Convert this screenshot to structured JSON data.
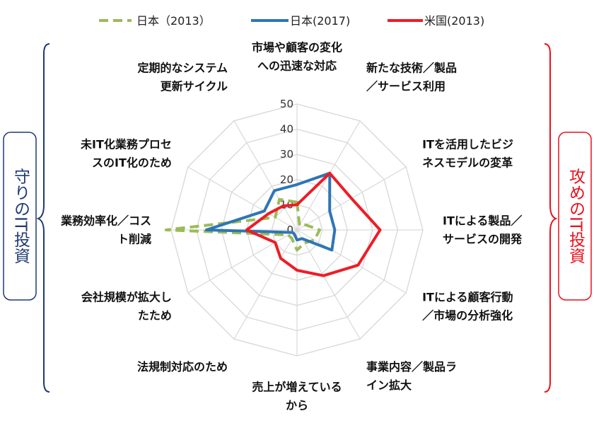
{
  "chart_data": {
    "type": "radar",
    "categories": [
      "市場や顧客の変化への迅速な対応",
      "新たな技術／製品／サービス利用",
      "ITを活用したビジネスモデルの変革",
      "ITによる製品／サービスの開発",
      "ITによる顧客行動／市場の分析強化",
      "事業内容／製品ライン拡大",
      "売上が増えているから",
      "法規制対応のため",
      "会社規模が拡大したため",
      "業務効率化／コスト削減",
      "未IT化業務プロセスのIT化のため",
      "定期的なシステム更新サイクル"
    ],
    "category_lines": [
      [
        "市場や顧客の変化",
        "への迅速な対応"
      ],
      [
        "新たな技術／製品",
        "／サービス利用"
      ],
      [
        "ITを活用したビジ",
        "ネスモデルの変革"
      ],
      [
        "ITによる製品／",
        "サービスの開発"
      ],
      [
        "ITによる顧客行動",
        "／市場の分析強化"
      ],
      [
        "事業内容／製品ラ",
        "イン拡大"
      ],
      [
        "売上が増えている",
        "から"
      ],
      [
        "法規制対応のため"
      ],
      [
        "会社規模が拡大し",
        "たため"
      ],
      [
        "業務効率化／コス",
        "ト削減"
      ],
      [
        "未IT化業務プロセ",
        "スのIT化のため"
      ],
      [
        "定期的なシステム",
        "更新サイクル"
      ]
    ],
    "ticks": [
      "0",
      "10",
      "20",
      "30",
      "40",
      "50"
    ],
    "rlim": [
      0,
      50
    ],
    "series": [
      {
        "name": "日本（2013）",
        "color": "#9BBB59",
        "style": "dashed",
        "values": [
          11,
          2,
          4,
          9,
          8,
          6,
          8,
          4,
          4,
          52,
          10,
          14
        ]
      },
      {
        "name": "日本(2017)",
        "color": "#2E75B6",
        "style": "solid",
        "values": [
          18,
          26,
          15,
          15,
          16,
          4,
          4,
          2,
          2,
          36,
          15,
          18
        ]
      },
      {
        "name": "米国(2013)",
        "color": "#EE1C25",
        "style": "solid",
        "values": [
          10,
          26,
          25,
          33,
          28,
          21,
          16,
          13,
          10,
          20,
          13,
          11
        ]
      }
    ],
    "legend_position": "top",
    "grid": true
  },
  "side_labels": {
    "left": "守りのIT投資",
    "right": "攻めのIT投資",
    "left_color": "#1F3A73",
    "right_color": "#E8111C"
  }
}
